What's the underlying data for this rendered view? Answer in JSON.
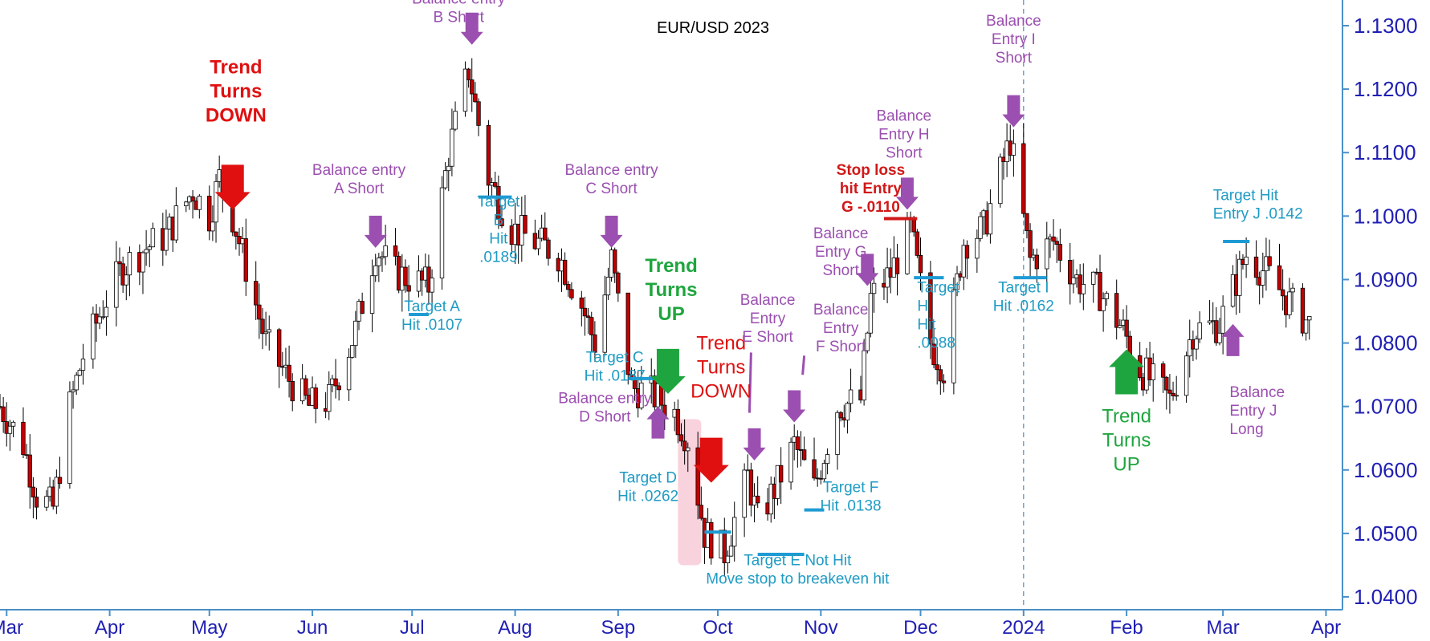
{
  "colors": {
    "bull": "#ffffff",
    "bear": "#c00000",
    "wick": "#000000",
    "axis": "#1f1fb4",
    "axis_line": "#4a90c8",
    "purple": "#9b4fb0",
    "blue_text": "#1f9bc4",
    "target_line": "#1f9bd4",
    "red": "#e01010",
    "red_text": "#d01818",
    "green": "#1fa53f",
    "pink_band": "#f6c7d3",
    "stop_line": "#d01818"
  },
  "chart_data": {
    "type": "candlestick",
    "title": "EUR/USD 2023",
    "ylim": [
      1.038,
      1.134
    ],
    "yticks": [
      1.04,
      1.05,
      1.06,
      1.07,
      1.08,
      1.09,
      1.1,
      1.11,
      1.12,
      1.13
    ],
    "ytick_labels": [
      "1.0400",
      "1.0500",
      "1.0600",
      "1.0700",
      "1.0800",
      "1.0900",
      "1.1000",
      "1.1100",
      "1.1200",
      "1.1300"
    ],
    "x_start": "2023-02-27",
    "x_end": "2024-04-05",
    "month_ticks": [
      {
        "date": "2023-03-01",
        "label": "Mar"
      },
      {
        "date": "2023-04-01",
        "label": "Apr"
      },
      {
        "date": "2023-05-01",
        "label": "May"
      },
      {
        "date": "2023-06-01",
        "label": "Jun"
      },
      {
        "date": "2023-07-01",
        "label": "Jul"
      },
      {
        "date": "2023-08-01",
        "label": "Aug"
      },
      {
        "date": "2023-09-01",
        "label": "Sep"
      },
      {
        "date": "2023-10-01",
        "label": "Oct"
      },
      {
        "date": "2023-11-01",
        "label": "Nov"
      },
      {
        "date": "2023-12-01",
        "label": "Dec"
      },
      {
        "date": "2024-01-01",
        "label": "2024"
      },
      {
        "date": "2024-02-01",
        "label": "Feb"
      },
      {
        "date": "2024-03-01",
        "label": "Mar"
      },
      {
        "date": "2024-04-01",
        "label": "Apr"
      }
    ],
    "year_divider": "2024-01-01",
    "path_points": [
      [
        "2023-02-27",
        1.07
      ],
      [
        "2023-03-06",
        1.064
      ],
      [
        "2023-03-10",
        1.056
      ],
      [
        "2023-03-15",
        1.054
      ],
      [
        "2023-03-20",
        1.07
      ],
      [
        "2023-03-24",
        1.078
      ],
      [
        "2023-03-31",
        1.087
      ],
      [
        "2023-04-05",
        1.092
      ],
      [
        "2023-04-12",
        1.095
      ],
      [
        "2023-04-18",
        1.097
      ],
      [
        "2023-04-26",
        1.104
      ],
      [
        "2023-05-01",
        1.1
      ],
      [
        "2023-05-04",
        1.106
      ],
      [
        "2023-05-08",
        1.1
      ],
      [
        "2023-05-12",
        1.092
      ],
      [
        "2023-05-18",
        1.08
      ],
      [
        "2023-05-24",
        1.075
      ],
      [
        "2023-05-31",
        1.07
      ],
      [
        "2023-06-06",
        1.071
      ],
      [
        "2023-06-14",
        1.082
      ],
      [
        "2023-06-20",
        1.095
      ],
      [
        "2023-06-26",
        1.091
      ],
      [
        "2023-07-06",
        1.089
      ],
      [
        "2023-07-12",
        1.11
      ],
      [
        "2023-07-18",
        1.123
      ],
      [
        "2023-07-24",
        1.106
      ],
      [
        "2023-07-31",
        1.098
      ],
      [
        "2023-08-07",
        1.096
      ],
      [
        "2023-08-14",
        1.094
      ],
      [
        "2023-08-21",
        1.086
      ],
      [
        "2023-08-25",
        1.08
      ],
      [
        "2023-08-30",
        1.093
      ],
      [
        "2023-09-05",
        1.073
      ],
      [
        "2023-09-11",
        1.072
      ],
      [
        "2023-09-18",
        1.069
      ],
      [
        "2023-09-22",
        1.065
      ],
      [
        "2023-09-27",
        1.05
      ],
      [
        "2023-10-03",
        1.047
      ],
      [
        "2023-10-10",
        1.059
      ],
      [
        "2023-10-13",
        1.052
      ],
      [
        "2023-10-19",
        1.058
      ],
      [
        "2023-10-24",
        1.064
      ],
      [
        "2023-10-30",
        1.057
      ],
      [
        "2023-11-06",
        1.07
      ],
      [
        "2023-11-13",
        1.071
      ],
      [
        "2023-11-16",
        1.087
      ],
      [
        "2023-11-22",
        1.091
      ],
      [
        "2023-11-28",
        1.098
      ],
      [
        "2023-12-04",
        1.08
      ],
      [
        "2023-12-08",
        1.076
      ],
      [
        "2023-12-14",
        1.096
      ],
      [
        "2023-12-20",
        1.098
      ],
      [
        "2023-12-28",
        1.112
      ],
      [
        "2024-01-03",
        1.093
      ],
      [
        "2024-01-10",
        1.096
      ],
      [
        "2024-01-17",
        1.09
      ],
      [
        "2024-01-24",
        1.088
      ],
      [
        "2024-01-31",
        1.082
      ],
      [
        "2024-02-05",
        1.076
      ],
      [
        "2024-02-14",
        1.071
      ],
      [
        "2024-02-21",
        1.082
      ],
      [
        "2024-02-29",
        1.083
      ],
      [
        "2024-03-08",
        1.094
      ],
      [
        "2024-03-14",
        1.091
      ],
      [
        "2024-03-20",
        1.087
      ],
      [
        "2024-03-27",
        1.083
      ]
    ],
    "target_lines": [
      {
        "d1": "2023-06-30",
        "d2": "2023-07-06",
        "y": 1.0845
      },
      {
        "d1": "2023-07-21",
        "d2": "2023-07-31",
        "y": 1.103
      },
      {
        "d1": "2023-09-04",
        "d2": "2023-09-12",
        "y": 1.0744
      },
      {
        "d1": "2023-09-27",
        "d2": "2023-10-05",
        "y": 1.0502
      },
      {
        "d1": "2023-10-13",
        "d2": "2023-10-27",
        "y": 1.0467
      },
      {
        "d1": "2023-10-27",
        "d2": "2023-11-02",
        "y": 1.0537
      },
      {
        "d1": "2023-11-29",
        "d2": "2023-12-08",
        "y": 1.0903
      },
      {
        "d1": "2023-12-29",
        "d2": "2024-01-08",
        "y": 1.0903
      },
      {
        "d1": "2024-03-01",
        "d2": "2024-03-09",
        "y": 1.096
      }
    ],
    "stop_line": {
      "d1": "2023-11-20",
      "d2": "2023-11-30",
      "y": 1.0996
    },
    "pink_band": {
      "d1": "2023-09-19",
      "d2": "2023-09-26",
      "y1": 1.068,
      "y2": 1.045
    },
    "arrows": [
      {
        "kind": "purple",
        "dir": "down",
        "date": "2023-07-19",
        "y": 1.127
      },
      {
        "kind": "purple",
        "dir": "down",
        "date": "2023-06-20",
        "y": 1.095
      },
      {
        "kind": "purple",
        "dir": "down",
        "date": "2023-08-30",
        "y": 1.095
      },
      {
        "kind": "purple",
        "dir": "up",
        "date": "2023-09-13",
        "y": 1.07
      },
      {
        "kind": "purple",
        "dir": "down",
        "date": "2023-10-12",
        "y": 1.0615
      },
      {
        "kind": "purple",
        "dir": "down",
        "date": "2023-10-24",
        "y": 1.0675
      },
      {
        "kind": "purple",
        "dir": "down",
        "date": "2023-11-15",
        "y": 1.089
      },
      {
        "kind": "purple",
        "dir": "down",
        "date": "2023-11-27",
        "y": 1.101
      },
      {
        "kind": "purple",
        "dir": "down",
        "date": "2023-12-29",
        "y": 1.114
      },
      {
        "kind": "purple",
        "dir": "up",
        "date": "2024-03-04",
        "y": 1.083
      },
      {
        "kind": "red",
        "dir": "down",
        "date": "2023-05-08",
        "y": 1.101
      },
      {
        "kind": "red",
        "dir": "down",
        "date": "2023-09-29",
        "y": 1.058
      },
      {
        "kind": "green",
        "dir": "down",
        "date": "2023-09-16",
        "y": 1.072
      },
      {
        "kind": "green",
        "dir": "up",
        "date": "2024-02-01",
        "y": 1.079
      }
    ],
    "pointer_lines": [
      {
        "date": "2023-10-11",
        "y1": 1.0785,
        "y2": 1.069
      },
      {
        "date": "2023-10-27",
        "y1": 1.078,
        "y2": 1.075
      }
    ]
  },
  "annotations": [
    {
      "id": "balance-b",
      "color": "purple",
      "date": "2023-07-15",
      "y": 1.1335,
      "lines": [
        "Balance entry",
        "B Short"
      ]
    },
    {
      "id": "trend-down-1",
      "color": "red",
      "date": "2023-05-09",
      "y": 1.1225,
      "lines": [
        "Trend",
        "Turns",
        "DOWN"
      ],
      "bold": true
    },
    {
      "id": "balance-a",
      "color": "purple",
      "date": "2023-06-15",
      "y": 1.1065,
      "lines": [
        "Balance entry",
        "A Short"
      ]
    },
    {
      "id": "target-a",
      "color": "blue",
      "date": "2023-07-07",
      "y": 1.085,
      "lines": [
        "Target A",
        "Hit .0107"
      ]
    },
    {
      "id": "target-b",
      "color": "blue",
      "date": "2023-07-27",
      "y": 1.1015,
      "lines": [
        "Target",
        "B",
        "Hit",
        ".0189"
      ]
    },
    {
      "id": "balance-c",
      "color": "purple",
      "date": "2023-08-30",
      "y": 1.1065,
      "lines": [
        "Balance entry",
        "C Short"
      ]
    },
    {
      "id": "trend-up-1",
      "color": "green",
      "date": "2023-09-17",
      "y": 1.0912,
      "lines": [
        "Trend",
        "Turns",
        "UP"
      ],
      "bold": true
    },
    {
      "id": "target-c",
      "color": "blue",
      "date": "2023-08-31",
      "y": 1.077,
      "lines": [
        "Target C",
        "Hit .0187"
      ]
    },
    {
      "id": "balance-d",
      "color": "purple",
      "date": "2023-08-28",
      "y": 1.0705,
      "lines": [
        "Balance entry",
        "D Short"
      ]
    },
    {
      "id": "trend-down-2",
      "color": "red",
      "date": "2023-10-02",
      "y": 1.079,
      "lines": [
        "Trend",
        "Turns",
        "DOWN"
      ],
      "bold": false
    },
    {
      "id": "target-d",
      "color": "blue",
      "date": "2023-09-10",
      "y": 1.058,
      "lines": [
        "Target D",
        "Hit .0262"
      ]
    },
    {
      "id": "balance-e",
      "color": "purple",
      "date": "2023-10-16",
      "y": 1.086,
      "lines": [
        "Balance",
        "Entry",
        "E Short"
      ]
    },
    {
      "id": "balance-f",
      "color": "purple",
      "date": "2023-11-07",
      "y": 1.0845,
      "lines": [
        "Balance",
        "Entry",
        "F Short"
      ]
    },
    {
      "id": "target-e",
      "color": "blue",
      "date": "2023-10-25",
      "y": 1.045,
      "lines": [
        "Target E Not Hit",
        "Move stop to breakeven hit"
      ]
    },
    {
      "id": "target-f",
      "color": "blue",
      "date": "2023-11-10",
      "y": 1.0565,
      "lines": [
        "Target F",
        "Hit .0138"
      ]
    },
    {
      "id": "balance-g",
      "color": "purple",
      "date": "2023-11-07",
      "y": 1.0965,
      "lines": [
        "Balance",
        "Entry G",
        "Short"
      ]
    },
    {
      "id": "stop-loss-g",
      "color": "red_text",
      "date": "2023-11-16",
      "y": 1.1065,
      "lines": [
        "Stop loss",
        "hit Entry",
        "G -.0110"
      ],
      "bold": true
    },
    {
      "id": "balance-h",
      "color": "purple",
      "date": "2023-11-26",
      "y": 1.115,
      "lines": [
        "Balance",
        "Entry H",
        "Short"
      ]
    },
    {
      "id": "target-h",
      "color": "blue",
      "date": "2023-11-30",
      "y": 1.088,
      "lines": [
        "Target",
        "H",
        "Hit",
        ".0088"
      ],
      "align": "start"
    },
    {
      "id": "balance-i",
      "color": "purple",
      "date": "2023-12-29",
      "y": 1.13,
      "lines": [
        "Balance",
        "Entry I",
        "Short"
      ]
    },
    {
      "id": "target-i",
      "color": "blue",
      "date": "2024-01-01",
      "y": 1.088,
      "lines": [
        "Target I",
        "Hit .0162"
      ]
    },
    {
      "id": "target-j",
      "color": "blue",
      "date": "2024-02-27",
      "y": 1.1025,
      "lines": [
        "Target Hit",
        "Entry J .0142"
      ],
      "align": "start"
    },
    {
      "id": "trend-up-2",
      "color": "green",
      "date": "2024-02-01",
      "y": 1.0675,
      "lines": [
        "Trend",
        "Turns",
        "UP"
      ],
      "bold": false
    },
    {
      "id": "balance-j",
      "color": "purple",
      "date": "2024-03-03",
      "y": 1.0715,
      "lines": [
        "Balance",
        "Entry J",
        "Long"
      ],
      "align": "start"
    }
  ]
}
